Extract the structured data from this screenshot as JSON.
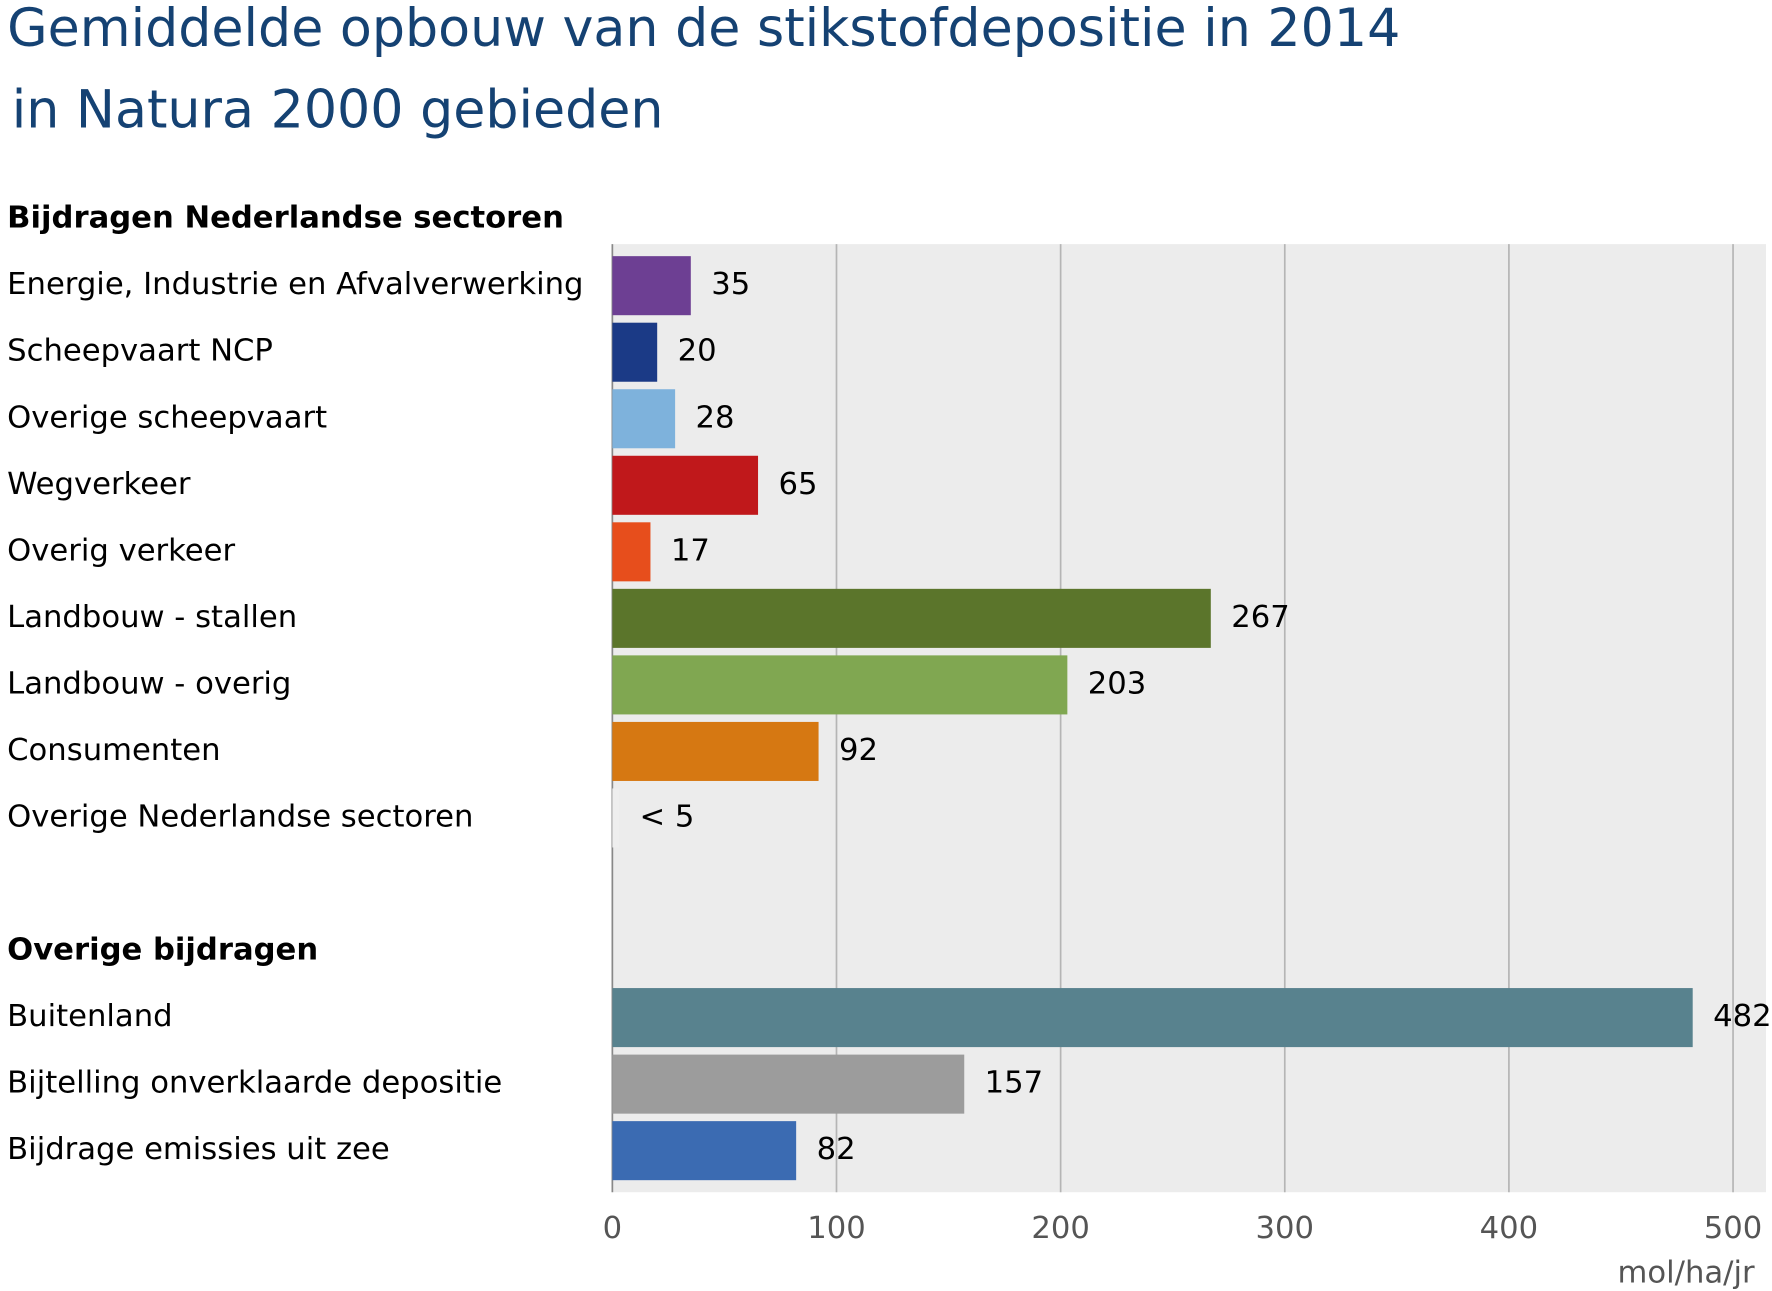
{
  "chart_data": {
    "type": "bar",
    "orientation": "horizontal",
    "title": [
      "Gemiddelde opbouw van de stikstofdepositie in 2014",
      "in Natura 2000 gebieden"
    ],
    "groups": [
      {
        "name": "Bijdragen Nederlandse sectoren",
        "categories": [
          "Energie, Industrie en Afvalverwerking",
          "Scheepvaart NCP",
          "Overige scheepvaart",
          "Wegverkeer",
          "Overig verkeer",
          "Landbouw - stallen",
          "Landbouw - overig",
          "Consumenten",
          "Overige Nederlandse sectoren"
        ],
        "values": [
          35,
          20,
          28,
          65,
          17,
          267,
          203,
          92,
          3
        ],
        "value_labels": [
          "35",
          "20",
          "28",
          "65",
          "17",
          "267",
          "203",
          "92",
          "< 5"
        ],
        "colors": [
          "#6d3f93",
          "#1b3a86",
          "#7eb2dc",
          "#c0181b",
          "#e74e1c",
          "#5b752b",
          "#80a751",
          "#d67812",
          "#eeeeee"
        ]
      },
      {
        "name": "Overige bijdragen",
        "categories": [
          "Buitenland",
          "Bijtelling onverklaarde depositie",
          "Bijdrage emissies uit zee"
        ],
        "values": [
          482,
          157,
          82
        ],
        "value_labels": [
          "482",
          "157",
          "82"
        ],
        "colors": [
          "#58828e",
          "#9c9c9c",
          "#3b6bb2"
        ]
      }
    ],
    "xlim": [
      0,
      500
    ],
    "xticks": [
      0,
      100,
      200,
      300,
      400,
      500
    ],
    "x_unit": "mol/ha/jr",
    "grid": true
  }
}
